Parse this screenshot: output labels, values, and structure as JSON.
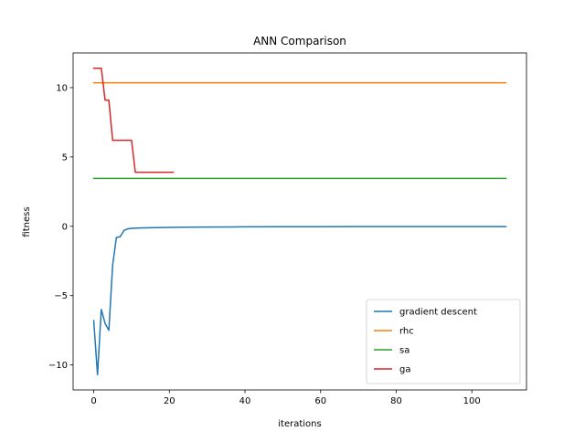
{
  "chart_data": {
    "type": "line",
    "title": "ANN Comparison",
    "xlabel": "iterations",
    "ylabel": "fitness",
    "xlim": [
      -5.45,
      114.45
    ],
    "ylim": [
      -11.8,
      12.5
    ],
    "xticks": [
      0,
      20,
      40,
      60,
      80,
      100
    ],
    "yticks": [
      -10,
      -5,
      0,
      5,
      10
    ],
    "ytick_labels": [
      "−10",
      "−5",
      "0",
      "5",
      "10"
    ],
    "grid": false,
    "legend_position": "lower-right",
    "series": [
      {
        "name": "gradient descent",
        "color": "#1f77b4",
        "x": [
          0,
          1,
          2,
          3,
          4,
          5,
          6,
          7,
          8,
          9,
          10,
          12,
          15,
          20,
          25,
          30,
          40,
          50,
          60,
          70,
          80,
          90,
          100,
          109
        ],
        "y": [
          -6.8,
          -10.7,
          -6.0,
          -7.0,
          -7.5,
          -2.8,
          -0.8,
          -0.75,
          -0.3,
          -0.18,
          -0.15,
          -0.12,
          -0.1,
          -0.08,
          -0.06,
          -0.05,
          -0.04,
          -0.03,
          -0.03,
          -0.02,
          -0.02,
          -0.02,
          -0.02,
          -0.02
        ]
      },
      {
        "name": "rhc",
        "color": "#ff7f0e",
        "x": [
          0,
          109
        ],
        "y": [
          10.35,
          10.35
        ]
      },
      {
        "name": "sa",
        "color": "#2ca02c",
        "x": [
          0,
          109
        ],
        "y": [
          3.45,
          3.45
        ]
      },
      {
        "name": "ga",
        "color": "#d62728",
        "x": [
          0,
          1,
          2,
          3,
          4,
          5,
          6,
          7,
          8,
          9,
          10,
          11,
          12,
          13,
          14,
          15,
          16,
          17,
          18,
          19,
          20,
          21
        ],
        "y": [
          11.4,
          11.4,
          11.4,
          9.1,
          9.1,
          6.2,
          6.2,
          6.2,
          6.2,
          6.2,
          6.2,
          3.9,
          3.9,
          3.9,
          3.9,
          3.9,
          3.9,
          3.9,
          3.9,
          3.9,
          3.9,
          3.9
        ]
      }
    ]
  }
}
